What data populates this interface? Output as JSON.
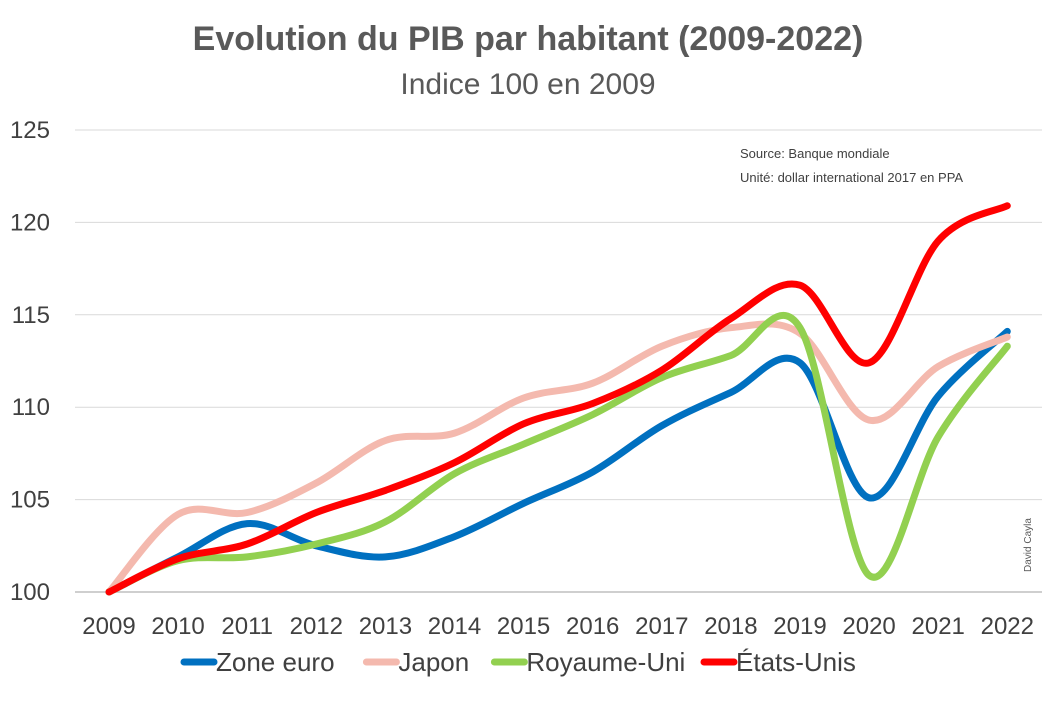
{
  "chart_data": {
    "type": "line",
    "title": "Evolution du PIB par habitant (2009-2022)",
    "subtitle": "Indice 100 en 2009",
    "source": "Source: Banque mondiale",
    "unit": "Unité: dollar international 2017 en PPA",
    "credit": "David Cayla",
    "x": [
      "2009",
      "2010",
      "2011",
      "2012",
      "2013",
      "2014",
      "2015",
      "2016",
      "2017",
      "2018",
      "2019",
      "2020",
      "2021",
      "2022"
    ],
    "ylim": [
      100,
      125
    ],
    "yticks": [
      100,
      105,
      110,
      115,
      120,
      125
    ],
    "grid": true,
    "legend_position": "bottom",
    "series": [
      {
        "name": "Zone euro",
        "color": "#0070C0",
        "values": [
          100,
          101.9,
          103.7,
          102.5,
          101.9,
          103.0,
          104.8,
          106.5,
          109.0,
          110.8,
          112.4,
          105.1,
          110.6,
          114.1
        ]
      },
      {
        "name": "Japon",
        "color": "#F4B9AE",
        "values": [
          100,
          104.2,
          104.3,
          105.9,
          108.2,
          108.6,
          110.5,
          111.3,
          113.3,
          114.3,
          114.0,
          109.3,
          112.2,
          113.8
        ]
      },
      {
        "name": "Royaume-Uni",
        "color": "#92D050",
        "values": [
          100,
          101.7,
          101.9,
          102.6,
          103.8,
          106.4,
          108.0,
          109.6,
          111.6,
          112.8,
          114.3,
          100.9,
          108.4,
          113.3
        ]
      },
      {
        "name": "États-Unis",
        "color": "#FF0000",
        "values": [
          100,
          101.8,
          102.6,
          104.3,
          105.5,
          107.0,
          109.1,
          110.2,
          112.0,
          114.8,
          116.6,
          112.4,
          119.0,
          120.9
        ]
      }
    ]
  }
}
